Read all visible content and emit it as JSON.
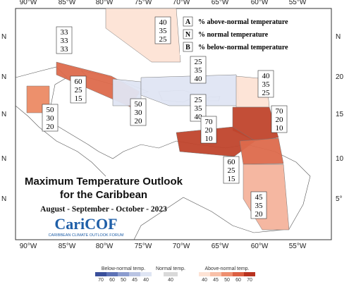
{
  "map": {
    "lon_labels": [
      "90°W",
      "85°W",
      "80°W",
      "75°W",
      "70°W",
      "65°W",
      "60°W",
      "55°W"
    ],
    "lat_labels_left": [
      "N",
      "N",
      "N",
      "N",
      "N"
    ],
    "lat_labels_right": [
      "N",
      "20",
      "15",
      "10",
      "5°"
    ]
  },
  "legend_key": [
    {
      "letter": "A",
      "text": "% above-normal temperature"
    },
    {
      "letter": "N",
      "text": "% normal temperature"
    },
    {
      "letter": "B",
      "text": "% below-normal temperature"
    }
  ],
  "regions": [
    {
      "color": "#fde3d5",
      "probabilities": [
        40,
        35,
        25
      ]
    },
    {
      "color": "#ffffff",
      "probabilities": [
        33,
        33,
        33
      ]
    },
    {
      "color": "#dd6a4c",
      "probabilities": [
        60,
        25,
        15
      ]
    },
    {
      "color": "#ec8a64",
      "probabilities": [
        50,
        30,
        20
      ]
    },
    {
      "color": "#dfe5f3",
      "probabilities": [
        50,
        30,
        20
      ]
    },
    {
      "color": "#dfe5f3",
      "probabilities": [
        25,
        35,
        40
      ]
    },
    {
      "color": "#dfe5f3",
      "probabilities": [
        25,
        35,
        40
      ]
    },
    {
      "color": "#fde3d5",
      "probabilities": [
        40,
        35,
        25
      ]
    },
    {
      "color": "#c0442c",
      "probabilities": [
        70,
        20,
        10
      ]
    },
    {
      "color": "#c0442c",
      "probabilities": [
        70,
        20,
        10
      ]
    },
    {
      "color": "#dd6a4c",
      "probabilities": [
        60,
        25,
        15
      ]
    },
    {
      "color": "#f4b39c",
      "probabilities": [
        45,
        35,
        20
      ]
    }
  ],
  "title": {
    "line1": "Maximum Temperature Outlook",
    "line2": "for the Caribbean",
    "period": "August - September - October - 2023",
    "logo": "CariCOF",
    "logo_subtitle": "CARIBBEAN CLIMATE OUTLOOK FORUM"
  },
  "colorbar": {
    "below": {
      "label": "Below-normal temp.",
      "ticks": [
        70,
        60,
        50,
        45,
        40
      ],
      "colors": [
        "#3a4f9b",
        "#5d72b6",
        "#8b9ccf",
        "#b9c4e3",
        "#dfe5f3"
      ]
    },
    "normal": {
      "label": "Normal temp.",
      "ticks": [
        40
      ],
      "colors": [
        "#d9d9d9"
      ]
    },
    "above": {
      "label": "Above-normal temp.",
      "ticks": [
        40,
        45,
        50,
        60,
        70
      ],
      "colors": [
        "#fde3d5",
        "#f8c0a8",
        "#ee8f70",
        "#dc5f42",
        "#b8321f"
      ]
    }
  }
}
